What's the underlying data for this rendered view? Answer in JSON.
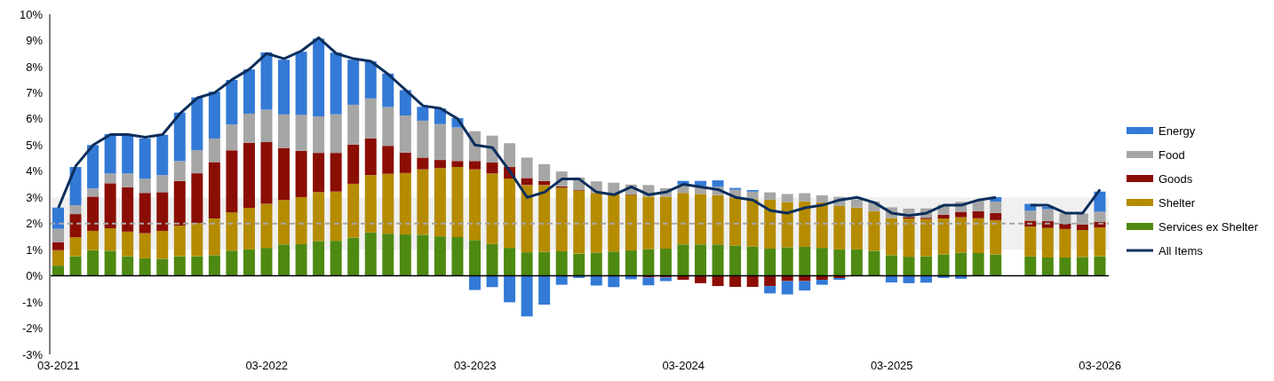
{
  "chart_data": {
    "type": "bar",
    "stacked": true,
    "categories": [
      "03-2021",
      null,
      null,
      null,
      null,
      null,
      null,
      null,
      null,
      null,
      null,
      null,
      "03-2022",
      null,
      null,
      null,
      null,
      null,
      null,
      null,
      null,
      null,
      null,
      null,
      "03-2023",
      null,
      null,
      null,
      null,
      null,
      null,
      null,
      null,
      null,
      null,
      null,
      "03-2024",
      null,
      null,
      null,
      null,
      null,
      null,
      null,
      null,
      null,
      null,
      null,
      "03-2025",
      null,
      null,
      null,
      null,
      null,
      null,
      null,
      null,
      null,
      null,
      null,
      "03-2026"
    ],
    "series": [
      {
        "name": "Services ex Shelter",
        "color": "#4e8a12",
        "values": [
          0.39,
          0.75,
          0.98,
          0.96,
          0.75,
          0.67,
          0.65,
          0.75,
          0.75,
          0.79,
          0.96,
          1.01,
          1.07,
          1.2,
          1.21,
          1.33,
          1.34,
          1.46,
          1.66,
          1.61,
          1.58,
          1.57,
          1.51,
          1.48,
          1.37,
          1.22,
          1.07,
          0.9,
          0.92,
          0.94,
          0.85,
          0.89,
          0.93,
          0.97,
          1.02,
          1.04,
          1.2,
          1.2,
          1.2,
          1.16,
          1.12,
          1.04,
          1.09,
          1.11,
          1.07,
          1.01,
          1.01,
          0.96,
          0.79,
          0.73,
          0.75,
          0.82,
          0.89,
          0.87,
          0.82,
          null,
          0.74,
          0.7,
          0.7,
          0.72,
          0.75
        ]
      },
      {
        "name": "Shelter",
        "color": "#b58b00",
        "values": [
          0.59,
          0.73,
          0.74,
          0.86,
          0.94,
          0.96,
          1.07,
          1.17,
          1.27,
          1.4,
          1.46,
          1.59,
          1.68,
          1.7,
          1.8,
          1.87,
          1.88,
          2.06,
          2.19,
          2.29,
          2.35,
          2.5,
          2.61,
          2.68,
          2.7,
          2.69,
          2.65,
          2.57,
          2.55,
          2.43,
          2.41,
          2.28,
          2.18,
          2.12,
          2.01,
          1.99,
          1.97,
          1.93,
          1.89,
          1.84,
          1.81,
          1.87,
          1.73,
          1.74,
          1.74,
          1.66,
          1.6,
          1.51,
          1.42,
          1.46,
          1.42,
          1.37,
          1.35,
          1.33,
          1.31,
          null,
          1.14,
          1.13,
          1.09,
          1.03,
          1.1
        ]
      },
      {
        "name": "Goods",
        "color": "#8b0e04",
        "values": [
          0.31,
          0.88,
          1.31,
          1.72,
          1.7,
          1.54,
          1.48,
          1.71,
          1.9,
          2.16,
          2.38,
          2.49,
          2.36,
          1.99,
          1.77,
          1.5,
          1.48,
          1.5,
          1.41,
          1.07,
          0.78,
          0.45,
          0.31,
          0.23,
          0.32,
          0.42,
          0.44,
          0.27,
          0.15,
          0.05,
          0.02,
          null,
          0,
          0.03,
          -0.06,
          -0.06,
          -0.15,
          -0.28,
          -0.39,
          -0.42,
          -0.42,
          -0.39,
          -0.2,
          -0.2,
          -0.15,
          -0.08,
          0,
          0,
          0,
          0.06,
          0.05,
          0.15,
          0.21,
          0.27,
          0.27,
          null,
          0.23,
          0.26,
          0.2,
          0.22,
          0.22
        ]
      },
      {
        "name": "Food",
        "color": "#a6a6a6",
        "values": [
          0.51,
          0.34,
          0.31,
          0.37,
          0.52,
          0.54,
          0.65,
          0.76,
          0.88,
          0.9,
          0.98,
          1.11,
          1.24,
          1.28,
          1.38,
          1.4,
          1.47,
          1.52,
          1.52,
          1.48,
          1.42,
          1.41,
          1.37,
          1.28,
          1.14,
          1.03,
          0.91,
          0.78,
          0.65,
          0.57,
          0.48,
          0.44,
          0.45,
          0.37,
          0.44,
          0.32,
          0.32,
          0.3,
          0.31,
          0.29,
          0.29,
          0.28,
          0.31,
          0.31,
          0.27,
          0.35,
          0.31,
          0.37,
          0.41,
          0.32,
          0.36,
          0.38,
          0.38,
          0.4,
          0.44,
          null,
          0.38,
          0.46,
          0.4,
          0.41,
          0.38
        ]
      },
      {
        "name": "Energy",
        "color": "#337ad6",
        "values": [
          0.81,
          1.46,
          1.66,
          1.51,
          1.46,
          1.54,
          1.54,
          1.85,
          2.02,
          1.79,
          1.71,
          1.69,
          2.19,
          2.09,
          2.41,
          2.97,
          2.36,
          1.72,
          1.42,
          1.28,
          0.97,
          0.53,
          0.6,
          0.36,
          -0.54,
          -0.43,
          -1.01,
          -1.55,
          -1.1,
          -0.34,
          -0.08,
          -0.37,
          -0.43,
          -0.13,
          -0.3,
          -0.14,
          0.14,
          0.2,
          0.25,
          0.07,
          0.06,
          -0.28,
          -0.51,
          -0.36,
          -0.19,
          -0.07,
          0,
          0,
          -0.25,
          -0.28,
          -0.26,
          -0.08,
          -0.11,
          0,
          0.17,
          null,
          0.26,
          0.09,
          0,
          0,
          0.77
        ]
      },
      {
        "name": "All Items",
        "type": "line",
        "color": "#0b2e5c",
        "values": [
          2.6,
          4.2,
          5.0,
          5.4,
          5.4,
          5.3,
          5.4,
          6.2,
          6.8,
          7.0,
          7.5,
          7.9,
          8.5,
          8.3,
          8.6,
          9.1,
          8.5,
          8.3,
          8.2,
          7.7,
          7.1,
          6.5,
          6.4,
          6.0,
          5.0,
          4.9,
          4.0,
          3.0,
          3.2,
          3.7,
          3.7,
          3.2,
          3.1,
          3.4,
          3.1,
          3.2,
          3.5,
          3.4,
          3.3,
          3.0,
          2.9,
          2.5,
          2.4,
          2.6,
          2.7,
          2.9,
          3.0,
          2.8,
          2.4,
          2.3,
          2.4,
          2.7,
          2.7,
          2.9,
          3.0,
          null,
          2.7,
          2.7,
          2.4,
          2.4,
          3.3
        ]
      }
    ],
    "ylim": [
      -3,
      10
    ],
    "yticks": [
      {
        "value": -3,
        "label": "-3%"
      },
      {
        "value": -2,
        "label": "-2%"
      },
      {
        "value": -1,
        "label": "-1%"
      },
      {
        "value": 0,
        "label": "0%"
      },
      {
        "value": 1,
        "label": "1%"
      },
      {
        "value": 2,
        "label": "2%"
      },
      {
        "value": 3,
        "label": "3%"
      },
      {
        "value": 4,
        "label": "4%"
      },
      {
        "value": 5,
        "label": "5%"
      },
      {
        "value": 6,
        "label": "6%"
      },
      {
        "value": 7,
        "label": "7%"
      },
      {
        "value": 8,
        "label": "8%"
      },
      {
        "value": 9,
        "label": "9%"
      },
      {
        "value": 10,
        "label": "10%"
      }
    ],
    "ref_lines": [
      {
        "axis": "y",
        "value": 0,
        "color": "#000000",
        "line_style": "solid"
      },
      {
        "axis": "y",
        "value": 2,
        "color": "#a6a6a6",
        "line_style": "dashed"
      }
    ],
    "bands": [
      {
        "axis": "y",
        "from": 1,
        "to": 3,
        "color": "#d9d9d9"
      }
    ],
    "grid": false,
    "legend": "right",
    "marker": "none"
  }
}
